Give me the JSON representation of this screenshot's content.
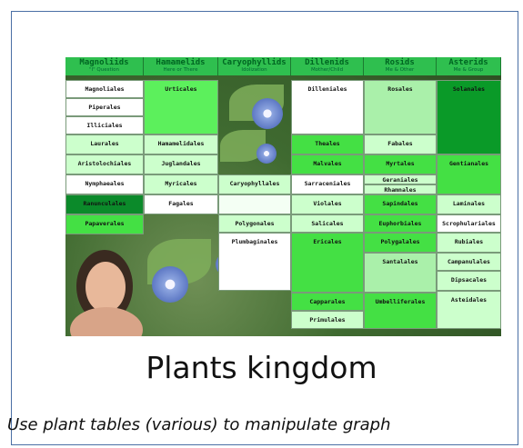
{
  "grid": {
    "columns": [
      {
        "name": "Magnoliids",
        "subtitle": "\"I\" Question",
        "cells": [
          "Magnoliales",
          "Piperales",
          "Illiciales",
          "Laurales",
          "Aristolochiales",
          "Nymphaeales",
          "Ranunculales",
          "Papaverales"
        ]
      },
      {
        "name": "Hamamelids",
        "subtitle": "Here or There",
        "cells": [
          "Urticales",
          "Hamamelidales",
          "Juglandales",
          "Myricales",
          "Fagales"
        ]
      },
      {
        "name": "Caryophyllids",
        "subtitle": "Idolization",
        "cells": [
          "Caryophyllales",
          "Polygonales",
          "Plumbaginales"
        ]
      },
      {
        "name": "Dillenids",
        "subtitle": "Mother/Child",
        "cells": [
          "Dilleniales",
          "Theales",
          "Malvales",
          "Sarraceniales",
          "Violales",
          "Salicales",
          "Ericales",
          "Capparales",
          "Primulales"
        ]
      },
      {
        "name": "Rosids",
        "subtitle": "Me & Other",
        "cells": [
          "Rosales",
          "Fabales",
          "Myrtales",
          "Geraniales",
          "Rhamnales",
          "Sapindales",
          "Euphorbiales",
          "Polygalales",
          "Santalales",
          "Umbelliferales"
        ]
      },
      {
        "name": "Asterids",
        "subtitle": "Me & Group",
        "cells": [
          "Solanales",
          "Gentianales",
          "Laminales",
          "Scrophulariales",
          "Rubiales",
          "Campanulales",
          "Dipsacales",
          "Asteidales"
        ]
      }
    ]
  },
  "title": "Plants kingdom",
  "caption": "Use plant tables (various) to manipulate graph"
}
